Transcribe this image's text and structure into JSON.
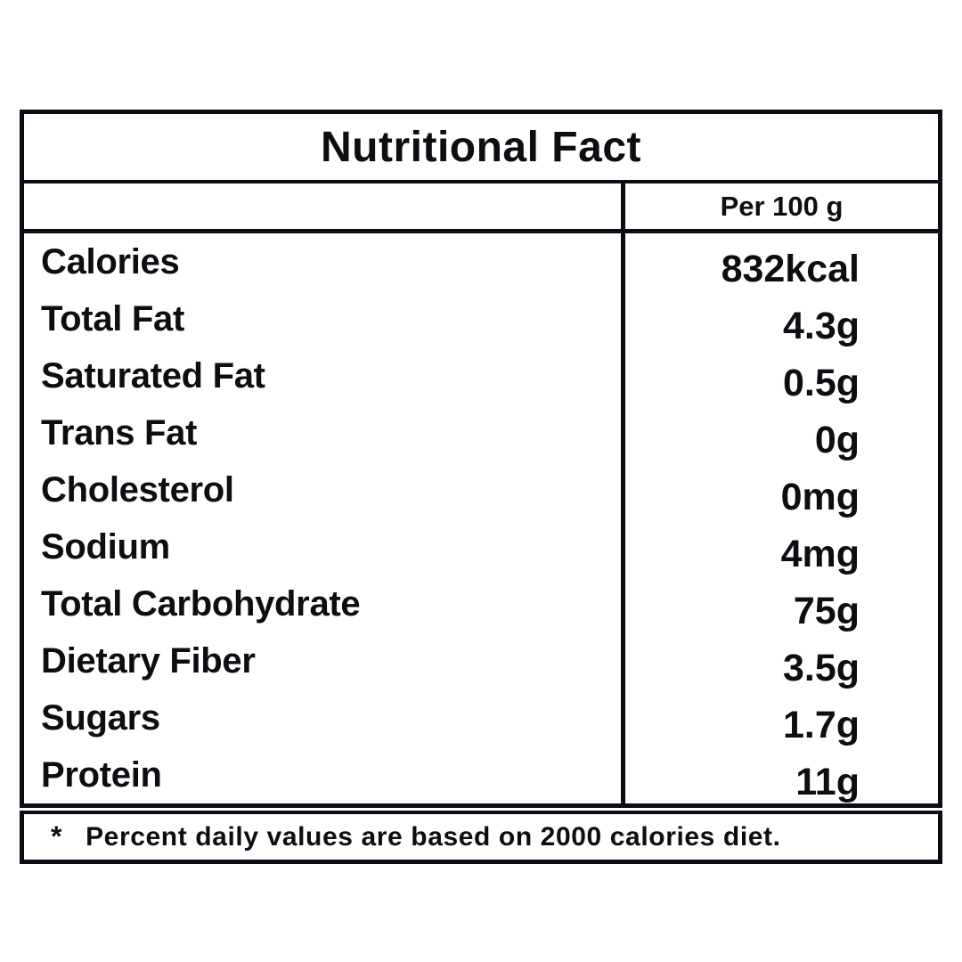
{
  "title": "Nutritional Fact",
  "column_header": "Per 100 g",
  "rows": [
    {
      "label": "Calories",
      "value": "832kcal"
    },
    {
      "label": "Total Fat",
      "value": "4.3g"
    },
    {
      "label": "Saturated Fat",
      "value": "0.5g"
    },
    {
      "label": "Trans Fat",
      "value": "0g"
    },
    {
      "label": "Cholesterol",
      "value": "0mg"
    },
    {
      "label": "Sodium",
      "value": "4mg"
    },
    {
      "label": "Total Carbohydrate",
      "value": "75g"
    },
    {
      "label": "Dietary Fiber",
      "value": "3.5g"
    },
    {
      "label": "Sugars",
      "value": "1.7g"
    },
    {
      "label": "Protein",
      "value": "11g"
    }
  ],
  "footnote": {
    "marker": "*",
    "text": "Percent daily values are based on 2000 calories diet."
  },
  "colors": {
    "border": "#0a0d14",
    "text": "#0c0e12",
    "background": "#ffffff"
  }
}
